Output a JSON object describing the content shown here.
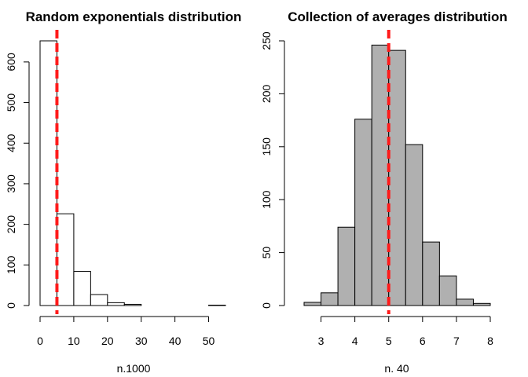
{
  "chart_data": [
    {
      "type": "histogram",
      "title": "Random exponentials distribution",
      "xlabel": "n.1000",
      "ylabel": "",
      "bin_width": 5,
      "bins": [
        {
          "x0": 0,
          "x1": 5,
          "count": 652
        },
        {
          "x0": 5,
          "x1": 10,
          "count": 226
        },
        {
          "x0": 10,
          "x1": 15,
          "count": 84
        },
        {
          "x0": 15,
          "x1": 20,
          "count": 27
        },
        {
          "x0": 20,
          "x1": 25,
          "count": 7
        },
        {
          "x0": 25,
          "x1": 30,
          "count": 3
        },
        {
          "x0": 30,
          "x1": 35,
          "count": 0
        },
        {
          "x0": 35,
          "x1": 40,
          "count": 0
        },
        {
          "x0": 40,
          "x1": 45,
          "count": 0
        },
        {
          "x0": 45,
          "x1": 50,
          "count": 0
        },
        {
          "x0": 50,
          "x1": 55,
          "count": 1
        }
      ],
      "vline": 5,
      "vline_color": "#ff1a1a",
      "bar_fill": "#ffffff",
      "x_ticks": [
        0,
        10,
        20,
        30,
        40,
        50
      ],
      "y_ticks": [
        0,
        100,
        200,
        300,
        400,
        500,
        600
      ],
      "xlim": [
        0,
        55
      ],
      "ylim": [
        0,
        652
      ],
      "grid": false,
      "legend": "none"
    },
    {
      "type": "histogram",
      "title": "Collection of averages distribution",
      "xlabel": "n. 40",
      "ylabel": "",
      "bin_width": 0.5,
      "bins": [
        {
          "x0": 2.5,
          "x1": 3.0,
          "count": 3
        },
        {
          "x0": 3.0,
          "x1": 3.5,
          "count": 12
        },
        {
          "x0": 3.5,
          "x1": 4.0,
          "count": 74
        },
        {
          "x0": 4.0,
          "x1": 4.5,
          "count": 176
        },
        {
          "x0": 4.5,
          "x1": 5.0,
          "count": 246
        },
        {
          "x0": 5.0,
          "x1": 5.5,
          "count": 241
        },
        {
          "x0": 5.5,
          "x1": 6.0,
          "count": 152
        },
        {
          "x0": 6.0,
          "x1": 6.5,
          "count": 60
        },
        {
          "x0": 6.5,
          "x1": 7.0,
          "count": 28
        },
        {
          "x0": 7.0,
          "x1": 7.5,
          "count": 6
        },
        {
          "x0": 7.5,
          "x1": 8.0,
          "count": 2
        }
      ],
      "vline": 5,
      "vline_color": "#ff1a1a",
      "bar_fill": "#b0b0b0",
      "x_ticks": [
        3,
        4,
        5,
        6,
        7,
        8
      ],
      "y_ticks": [
        0,
        50,
        100,
        150,
        200,
        250
      ],
      "xlim": [
        2.5,
        8.0
      ],
      "ylim": [
        0,
        250
      ],
      "grid": false,
      "legend": "none"
    }
  ]
}
